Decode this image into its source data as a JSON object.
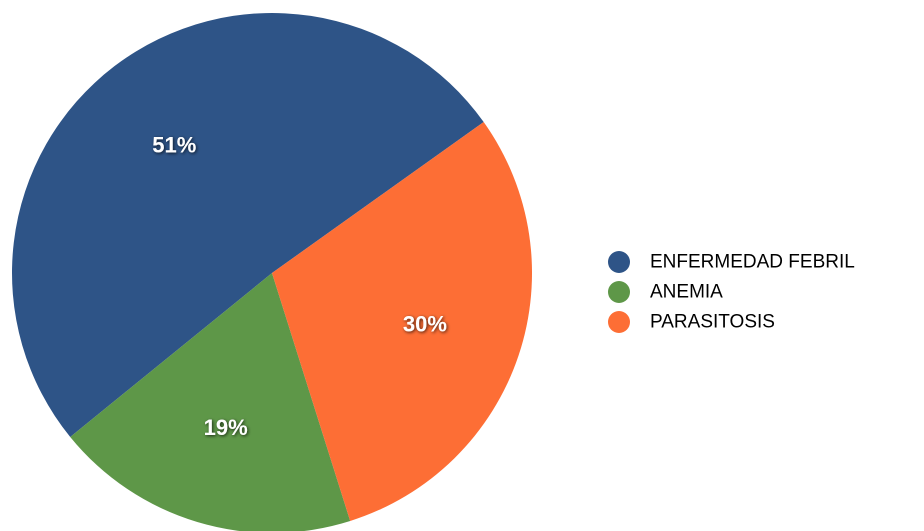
{
  "chart_data": {
    "type": "pie",
    "categories": [
      "ENFERMEDAD FEBRIL",
      "ANEMIA",
      "PARASITOSIS"
    ],
    "values": [
      51,
      19,
      30
    ],
    "labels": [
      "51%",
      "19%",
      "30%"
    ],
    "colors": [
      "#2e5487",
      "#5e9748",
      "#fd6e35"
    ],
    "legend_position": "right",
    "title": ""
  }
}
